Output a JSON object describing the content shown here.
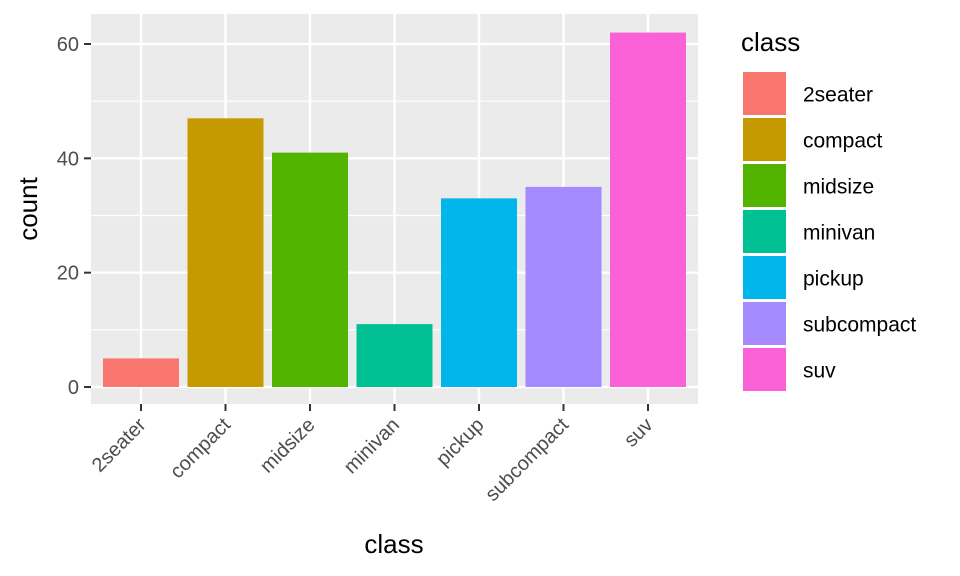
{
  "chart_data": {
    "type": "bar",
    "categories": [
      "2seater",
      "compact",
      "midsize",
      "minivan",
      "pickup",
      "subcompact",
      "suv"
    ],
    "values": [
      5,
      47,
      41,
      11,
      33,
      35,
      62
    ],
    "colors": [
      "#F8766D",
      "#C49A00",
      "#53B400",
      "#00C094",
      "#00B6EB",
      "#A58AFF",
      "#FB61D7"
    ],
    "xlabel": "class",
    "ylabel": "count",
    "ylim": [
      0,
      65
    ],
    "yticks": [
      0,
      20,
      40,
      60
    ],
    "grid": true,
    "panel_background": "#EBEBEB",
    "legend": {
      "title": "class",
      "placement": "right",
      "items": [
        "2seater",
        "compact",
        "midsize",
        "minivan",
        "pickup",
        "subcompact",
        "suv"
      ]
    }
  }
}
